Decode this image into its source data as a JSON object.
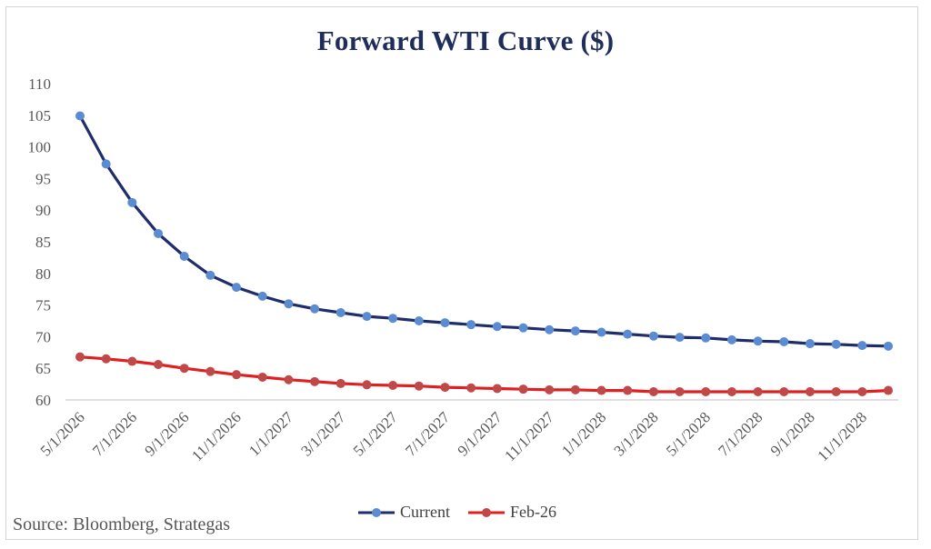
{
  "chart_data": {
    "type": "line",
    "title": "Forward WTI Curve ($)",
    "xlabel": "",
    "ylabel": "",
    "ylim": [
      60,
      110
    ],
    "y_ticks": [
      60,
      65,
      70,
      75,
      80,
      85,
      90,
      95,
      100,
      105,
      110
    ],
    "x_tick_labels": [
      "5/1/2026",
      "7/1/2026",
      "9/1/2026",
      "11/1/2026",
      "1/1/2027",
      "3/1/2027",
      "5/1/2027",
      "7/1/2027",
      "9/1/2027",
      "11/1/2027",
      "1/1/2028",
      "3/1/2028",
      "5/1/2028",
      "7/1/2028",
      "9/1/2028",
      "11/1/2028"
    ],
    "legend_position": "bottom",
    "series": [
      {
        "name": "Current",
        "color": "#1f2d6b",
        "marker_color": "#5b8bd0",
        "values": [
          104.9,
          97.3,
          91.2,
          86.3,
          82.7,
          79.7,
          77.8,
          76.4,
          75.2,
          74.4,
          73.8,
          73.2,
          72.9,
          72.5,
          72.2,
          71.9,
          71.6,
          71.4,
          71.1,
          70.9,
          70.7,
          70.4,
          70.1,
          69.9,
          69.8,
          69.5,
          69.3,
          69.2,
          68.9,
          68.8,
          68.6,
          68.5
        ]
      },
      {
        "name": "Feb-26",
        "color": "#e02020",
        "marker_color": "#c04848",
        "values": [
          66.8,
          66.5,
          66.1,
          65.6,
          65.0,
          64.5,
          64.0,
          63.6,
          63.2,
          62.9,
          62.6,
          62.4,
          62.3,
          62.2,
          62.0,
          61.9,
          61.8,
          61.7,
          61.6,
          61.6,
          61.5,
          61.5,
          61.3,
          61.3,
          61.3,
          61.3,
          61.3,
          61.3,
          61.3,
          61.3,
          61.3,
          61.5
        ]
      }
    ]
  },
  "source": "Source: Bloomberg, Strategas"
}
